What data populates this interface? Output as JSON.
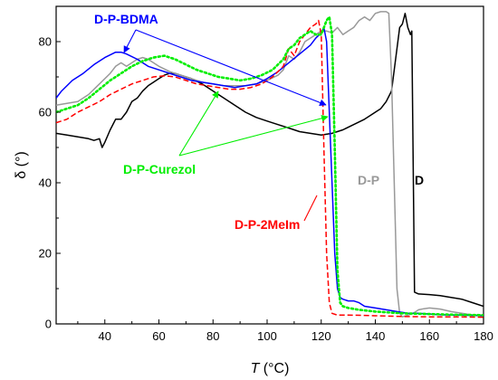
{
  "chart_data": {
    "type": "line",
    "xlabel": "T (°C)",
    "xlabel_main": "T",
    "xlabel_unit": " (°C)",
    "ylabel": "δ (°)",
    "xlim": [
      22,
      180
    ],
    "ylim": [
      0,
      90
    ],
    "xticks": [
      40,
      60,
      80,
      100,
      120,
      140,
      160,
      180
    ],
    "yticks": [
      0,
      20,
      40,
      60,
      80
    ],
    "grid": false,
    "series": [
      {
        "name": "D",
        "color": "#000000",
        "dash": "solid",
        "points": [
          [
            22,
            54
          ],
          [
            26,
            53.5
          ],
          [
            30,
            53
          ],
          [
            34,
            52.5
          ],
          [
            36,
            52
          ],
          [
            38,
            52.5
          ],
          [
            39,
            50
          ],
          [
            40,
            51.5
          ],
          [
            42,
            55
          ],
          [
            44,
            58
          ],
          [
            46,
            58
          ],
          [
            48,
            60
          ],
          [
            50,
            63
          ],
          [
            52,
            64
          ],
          [
            54,
            66
          ],
          [
            56,
            67.5
          ],
          [
            58,
            68.5
          ],
          [
            60,
            69.5
          ],
          [
            62,
            70.5
          ],
          [
            64,
            71
          ],
          [
            66,
            71
          ],
          [
            68,
            70.5
          ],
          [
            70,
            70
          ],
          [
            72,
            69.5
          ],
          [
            76,
            68
          ],
          [
            80,
            66
          ],
          [
            84,
            64
          ],
          [
            88,
            62
          ],
          [
            92,
            60
          ],
          [
            96,
            58.5
          ],
          [
            100,
            57.5
          ],
          [
            104,
            56.5
          ],
          [
            108,
            55.5
          ],
          [
            112,
            54.5
          ],
          [
            116,
            54
          ],
          [
            120,
            53.5
          ],
          [
            124,
            54
          ],
          [
            128,
            55
          ],
          [
            132,
            56.5
          ],
          [
            136,
            58
          ],
          [
            140,
            60
          ],
          [
            142,
            61
          ],
          [
            144,
            63
          ],
          [
            146,
            66
          ],
          [
            147,
            72
          ],
          [
            148,
            78
          ],
          [
            149,
            84
          ],
          [
            150,
            85
          ],
          [
            151,
            88
          ],
          [
            152,
            84
          ],
          [
            153,
            82
          ],
          [
            153.5,
            83
          ],
          [
            154.5,
            9
          ],
          [
            156,
            8.5
          ],
          [
            160,
            8.3
          ],
          [
            164,
            8
          ],
          [
            168,
            7.5
          ],
          [
            172,
            7
          ],
          [
            176,
            6
          ],
          [
            180,
            5
          ]
        ]
      },
      {
        "name": "D-P",
        "color": "#999999",
        "dash": "solid",
        "points": [
          [
            22,
            62
          ],
          [
            26,
            62.5
          ],
          [
            30,
            63
          ],
          [
            34,
            65
          ],
          [
            38,
            68
          ],
          [
            42,
            71
          ],
          [
            44,
            73
          ],
          [
            46,
            74
          ],
          [
            48,
            73
          ],
          [
            50,
            74
          ],
          [
            52,
            75
          ],
          [
            54,
            75.5
          ],
          [
            56,
            75
          ],
          [
            58,
            74
          ],
          [
            60,
            73
          ],
          [
            64,
            71.5
          ],
          [
            68,
            70.5
          ],
          [
            72,
            69.5
          ],
          [
            76,
            68.5
          ],
          [
            80,
            68
          ],
          [
            84,
            67.5
          ],
          [
            88,
            67.5
          ],
          [
            92,
            67.5
          ],
          [
            96,
            68
          ],
          [
            100,
            69
          ],
          [
            104,
            70.5
          ],
          [
            106,
            72
          ],
          [
            108,
            76
          ],
          [
            110,
            75
          ],
          [
            112,
            77
          ],
          [
            114,
            80
          ],
          [
            116,
            81
          ],
          [
            118,
            82
          ],
          [
            120,
            83
          ],
          [
            122,
            83
          ],
          [
            124,
            82.5
          ],
          [
            126,
            84
          ],
          [
            128,
            82
          ],
          [
            130,
            83
          ],
          [
            132,
            84
          ],
          [
            134,
            86
          ],
          [
            136,
            87
          ],
          [
            138,
            86
          ],
          [
            140,
            88
          ],
          [
            142,
            88.5
          ],
          [
            144,
            88.5
          ],
          [
            145,
            88
          ],
          [
            146,
            70
          ],
          [
            147,
            40
          ],
          [
            148,
            10
          ],
          [
            149,
            3
          ],
          [
            150,
            2
          ],
          [
            152,
            2.5
          ],
          [
            154,
            3
          ],
          [
            156,
            4
          ],
          [
            158,
            4.3
          ],
          [
            160,
            4.5
          ],
          [
            164,
            4.2
          ],
          [
            168,
            3.5
          ],
          [
            172,
            3
          ],
          [
            176,
            2.5
          ],
          [
            180,
            2.5
          ]
        ]
      },
      {
        "name": "D-P-BDMA",
        "color": "#0000ff",
        "dash": "solid",
        "points": [
          [
            22,
            64
          ],
          [
            24,
            66
          ],
          [
            28,
            69
          ],
          [
            32,
            71
          ],
          [
            36,
            73.5
          ],
          [
            40,
            75.5
          ],
          [
            44,
            77
          ],
          [
            46,
            77
          ],
          [
            48,
            76.5
          ],
          [
            52,
            75
          ],
          [
            56,
            73
          ],
          [
            60,
            72
          ],
          [
            64,
            71
          ],
          [
            68,
            70
          ],
          [
            72,
            69
          ],
          [
            76,
            68.5
          ],
          [
            80,
            68
          ],
          [
            84,
            67.5
          ],
          [
            88,
            67
          ],
          [
            92,
            67.5
          ],
          [
            96,
            68
          ],
          [
            100,
            69.5
          ],
          [
            104,
            71.5
          ],
          [
            108,
            74
          ],
          [
            112,
            76.5
          ],
          [
            116,
            79
          ],
          [
            118,
            81
          ],
          [
            120,
            82.5
          ],
          [
            121,
            84
          ],
          [
            122,
            80
          ],
          [
            123,
            60
          ],
          [
            124,
            40
          ],
          [
            125,
            20
          ],
          [
            126,
            10
          ],
          [
            127,
            7.5
          ],
          [
            128,
            7
          ],
          [
            130,
            6.5
          ],
          [
            132,
            6.5
          ],
          [
            134,
            6
          ],
          [
            136,
            5
          ],
          [
            140,
            4.5
          ],
          [
            144,
            4
          ],
          [
            148,
            3.5
          ],
          [
            152,
            3
          ],
          [
            156,
            3
          ],
          [
            160,
            2.8
          ],
          [
            164,
            2.6
          ],
          [
            168,
            2.5
          ],
          [
            172,
            2.5
          ],
          [
            176,
            2.4
          ],
          [
            180,
            2.3
          ]
        ]
      },
      {
        "name": "D-P-2MeIm",
        "color": "#ff0000",
        "dash": "dashed",
        "points": [
          [
            22,
            57
          ],
          [
            26,
            58
          ],
          [
            30,
            60
          ],
          [
            34,
            61.5
          ],
          [
            38,
            63
          ],
          [
            42,
            65
          ],
          [
            46,
            66.5
          ],
          [
            50,
            68
          ],
          [
            54,
            69
          ],
          [
            58,
            70
          ],
          [
            62,
            70.3
          ],
          [
            66,
            70
          ],
          [
            70,
            69
          ],
          [
            74,
            68
          ],
          [
            78,
            67.5
          ],
          [
            82,
            67
          ],
          [
            86,
            66.5
          ],
          [
            90,
            66.5
          ],
          [
            94,
            67
          ],
          [
            98,
            68
          ],
          [
            102,
            70
          ],
          [
            106,
            73
          ],
          [
            108,
            78
          ],
          [
            110,
            76
          ],
          [
            112,
            80
          ],
          [
            114,
            82
          ],
          [
            116,
            84
          ],
          [
            118,
            85
          ],
          [
            119,
            86
          ],
          [
            120,
            82
          ],
          [
            121,
            50
          ],
          [
            122,
            20
          ],
          [
            123,
            6
          ],
          [
            124,
            3
          ],
          [
            126,
            2.5
          ],
          [
            130,
            2.5
          ],
          [
            136,
            2.4
          ],
          [
            140,
            2.3
          ],
          [
            150,
            2.1
          ],
          [
            160,
            2
          ],
          [
            170,
            2
          ],
          [
            180,
            1.9
          ]
        ]
      },
      {
        "name": "D-P-Curezol",
        "color": "#00ee00",
        "dash": "dotted",
        "points": [
          [
            22,
            60
          ],
          [
            26,
            61
          ],
          [
            30,
            62
          ],
          [
            34,
            64
          ],
          [
            38,
            66.5
          ],
          [
            42,
            69
          ],
          [
            46,
            71
          ],
          [
            50,
            73
          ],
          [
            54,
            74.5
          ],
          [
            58,
            75.5
          ],
          [
            62,
            76
          ],
          [
            66,
            75
          ],
          [
            70,
            73.5
          ],
          [
            74,
            72
          ],
          [
            78,
            71
          ],
          [
            82,
            70
          ],
          [
            86,
            69.5
          ],
          [
            90,
            69
          ],
          [
            94,
            69.5
          ],
          [
            98,
            70.5
          ],
          [
            102,
            72
          ],
          [
            106,
            75
          ],
          [
            108,
            78
          ],
          [
            110,
            79
          ],
          [
            112,
            81
          ],
          [
            114,
            82
          ],
          [
            116,
            83
          ],
          [
            118,
            82
          ],
          [
            120,
            82
          ],
          [
            122,
            86
          ],
          [
            123,
            87
          ],
          [
            124,
            82
          ],
          [
            125,
            50
          ],
          [
            126,
            15
          ],
          [
            127,
            6
          ],
          [
            128,
            5
          ],
          [
            130,
            4.5
          ],
          [
            134,
            4
          ],
          [
            140,
            3.5
          ],
          [
            150,
            3
          ],
          [
            160,
            2.8
          ],
          [
            170,
            2.6
          ],
          [
            180,
            2.5
          ]
        ]
      }
    ],
    "labels": [
      {
        "text": "D-P-BDMA",
        "color": "#0000ff"
      },
      {
        "text": "D-P-Curezol",
        "color": "#00ee00"
      },
      {
        "text": "D-P-2MeIm",
        "color": "#ff0000"
      },
      {
        "text": "D-P",
        "color": "#999999"
      },
      {
        "text": "D",
        "color": "#000000"
      }
    ]
  }
}
